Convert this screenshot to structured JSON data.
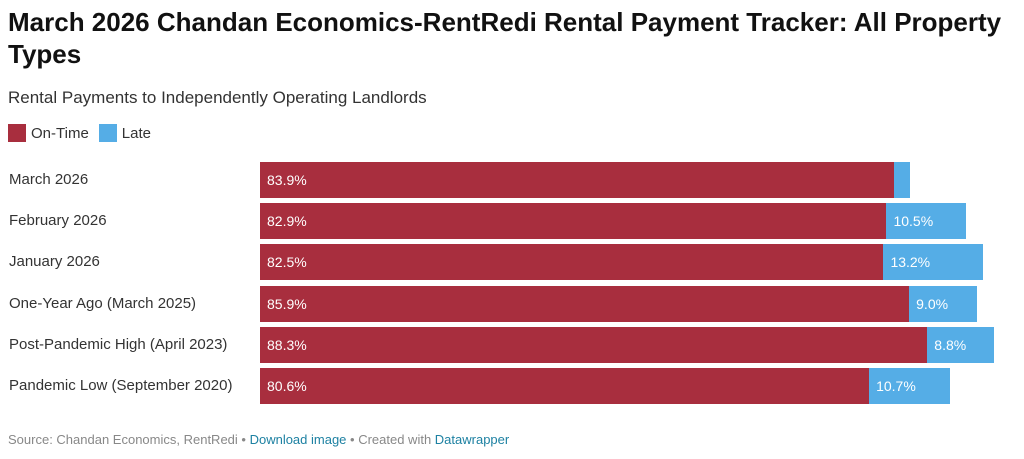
{
  "colors": {
    "on_time": "#a82e3e",
    "late": "#55ade6"
  },
  "chart_data": {
    "type": "bar",
    "orientation": "horizontal",
    "stacked": true,
    "title": "March 2026 Chandan Economics-RentRedi Rental Payment Tracker: All Property Types",
    "subtitle": "Rental Payments to Independently Operating Landlords",
    "categories": [
      "March 2026",
      "February 2026",
      "January 2026",
      "One-Year Ago (March 2025)",
      "Post-Pandemic High (April 2023)",
      "Pandemic Low (September 2020)"
    ],
    "series": [
      {
        "name": "On-Time",
        "values": [
          83.9,
          82.9,
          82.5,
          85.9,
          88.3,
          80.6
        ],
        "labels": [
          "83.9%",
          "82.9%",
          "82.5%",
          "85.9%",
          "88.3%",
          "80.6%"
        ]
      },
      {
        "name": "Late",
        "values": [
          2.1,
          10.5,
          13.2,
          9.0,
          8.8,
          10.7
        ],
        "labels": [
          "",
          "10.5%",
          "13.2%",
          "9.0%",
          "8.8%",
          "10.7%"
        ]
      }
    ],
    "xlim": [
      0,
      100
    ],
    "legend": "top-left",
    "grid": false
  },
  "footer": {
    "source": "Source: Chandan Economics, RentRedi",
    "sep1": " • ",
    "download": "Download image",
    "sep2": " • Created with ",
    "datawrapper": "Datawrapper"
  }
}
